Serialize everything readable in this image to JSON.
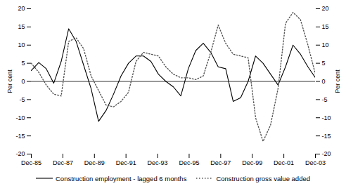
{
  "chart_data": {
    "type": "line",
    "x": [
      0,
      0.4736842105,
      0.9473684211,
      1.4210526316,
      1.8947368421,
      2.3684210526,
      2.8421052632,
      3.3157894737,
      3.7894736842,
      4.2631578947,
      4.7368421053,
      5.2105263158,
      5.6842105263,
      6.1578947368,
      6.6315789474,
      7.1052631579,
      7.5789473684,
      8.0526315789,
      8.5263157895,
      9,
      9.4736842105,
      9.9473684211,
      10.4210526316,
      10.8947368421,
      11.3684210526,
      11.8421052632,
      12.3157894737,
      12.7894736842,
      13.2631578947,
      13.7368421053,
      14.2105263158,
      14.6842105263,
      15.1578947368,
      15.6315789474,
      16.1052631579,
      16.5789473684,
      17.0526315789,
      17.5263157895,
      18
    ],
    "xlim": [
      0,
      18
    ],
    "xticks": [
      {
        "value": 0,
        "label": "Dec-85"
      },
      {
        "value": 2,
        "label": "Dec-87"
      },
      {
        "value": 4,
        "label": "Dec-89"
      },
      {
        "value": 6,
        "label": "Dec-91"
      },
      {
        "value": 8,
        "label": "Dec-93"
      },
      {
        "value": 10,
        "label": "Dec-95"
      },
      {
        "value": 12,
        "label": "Dec-97"
      },
      {
        "value": 14,
        "label": "Dec-99"
      },
      {
        "value": 16,
        "label": "Dec-01"
      },
      {
        "value": 18,
        "label": "Dec-03"
      }
    ],
    "ylim": [
      -20,
      20
    ],
    "yticks": [
      -20,
      -15,
      -10,
      -5,
      0,
      5,
      10,
      15,
      20
    ],
    "y2lim": [
      -20,
      20
    ],
    "y2ticks": [
      -20,
      -15,
      -10,
      -5,
      0,
      5,
      10,
      15,
      20
    ],
    "y_label": "Per cent",
    "y2_label": "Per cent",
    "legend": "bottom",
    "grid": false,
    "series": [
      {
        "name": "Construction employment - lagged 6 months",
        "color": "#000000",
        "line_style": "solid",
        "values": [
          3.0,
          5.2,
          3.5,
          -0.5,
          5.5,
          14.5,
          11.0,
          4.5,
          -2.0,
          -11.0,
          -8.0,
          -3.5,
          1.5,
          5.0,
          7.0,
          7.0,
          5.5,
          2.0,
          0.0,
          -1.5,
          -4.0,
          3.5,
          8.5,
          10.5,
          8.0,
          4.0,
          3.5,
          -5.5,
          -4.5,
          0.0,
          7.0,
          5.0,
          2.0,
          -1.0,
          4.0,
          10.0,
          7.5,
          4.0,
          1.0
        ]
      },
      {
        "name": "Construction gross value added",
        "color": "#555555",
        "line_style": "dotted",
        "values": [
          5.0,
          2.5,
          -1.0,
          -3.5,
          -4.0,
          11.0,
          12.0,
          9.0,
          1.5,
          -2.5,
          -6.5,
          -7.0,
          -5.5,
          -3.0,
          5.5,
          8.0,
          7.5,
          7.0,
          4.0,
          2.0,
          1.0,
          1.0,
          0.5,
          1.5,
          8.0,
          15.5,
          10.5,
          7.5,
          7.0,
          6.5,
          -10.0,
          -16.5,
          -12.0,
          -2.0,
          16.0,
          19.0,
          17.0,
          10.0,
          2.0
        ]
      }
    ]
  }
}
